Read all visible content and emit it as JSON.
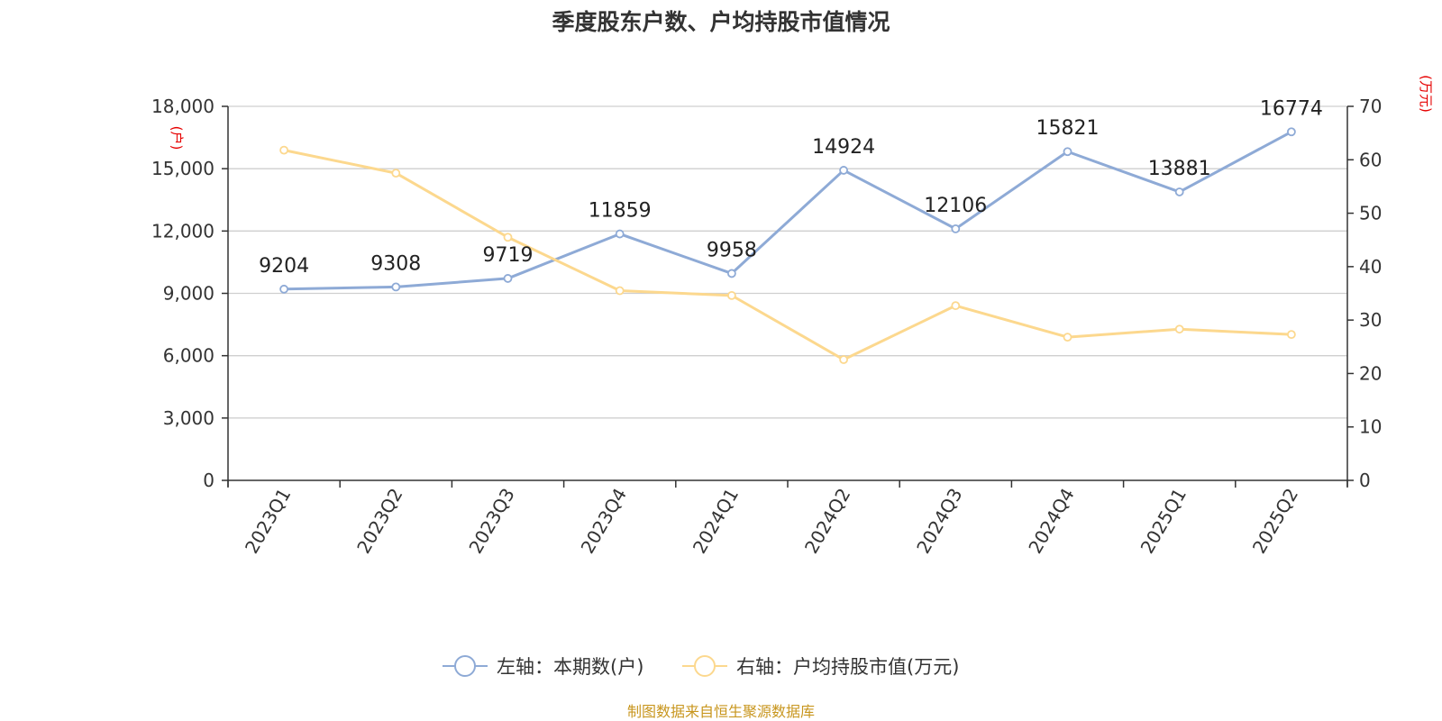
{
  "chart_data": {
    "type": "line",
    "title": "季度股东户数、户均持股市值情况",
    "categories": [
      "2023Q1",
      "2023Q2",
      "2023Q3",
      "2023Q4",
      "2024Q1",
      "2024Q2",
      "2024Q3",
      "2024Q4",
      "2025Q1",
      "2025Q2"
    ],
    "y_left": {
      "unit_label": "(户)",
      "ticks": [
        "0",
        "3,000",
        "6,000",
        "9,000",
        "12,000",
        "15,000",
        "18,000"
      ],
      "ylim": [
        0,
        18000
      ]
    },
    "y_right": {
      "unit_label": "(万元)",
      "ticks": [
        "0",
        "10",
        "20",
        "30",
        "40",
        "50",
        "60",
        "70"
      ],
      "ylim": [
        0,
        70
      ]
    },
    "series": [
      {
        "name": "左轴：本期数(户)",
        "axis": "left",
        "color": "#8eaad6",
        "values": [
          9204,
          9308,
          9719,
          11859,
          9958,
          14924,
          12106,
          15821,
          13881,
          16774
        ],
        "labels": [
          "9204",
          "9308",
          "9719",
          "11859",
          "9958",
          "14924",
          "12106",
          "15821",
          "13881",
          "16774"
        ]
      },
      {
        "name": "右轴：户均持股市值(万元)",
        "axis": "right",
        "color": "#fcd88e",
        "values": [
          61.8,
          57.5,
          45.5,
          35.5,
          34.6,
          22.6,
          32.7,
          26.8,
          28.3,
          27.3
        ]
      }
    ],
    "grid": true,
    "legend_position": "bottom-center",
    "source": "制图数据来自恒生聚源数据库"
  }
}
